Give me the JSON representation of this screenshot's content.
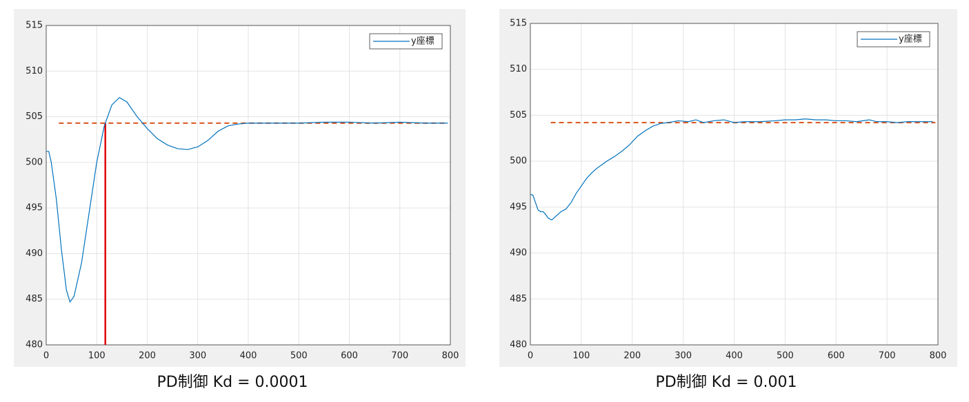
{
  "chart_data": [
    {
      "type": "line",
      "caption": "PD制御 Kd = 0.0001",
      "x": [
        0,
        5,
        10,
        20,
        30,
        40,
        47,
        55,
        70,
        85,
        100,
        115,
        130,
        145,
        160,
        180,
        200,
        220,
        240,
        260,
        280,
        300,
        320,
        340,
        360,
        380,
        400,
        450,
        500,
        550,
        600,
        650,
        700,
        750,
        795
      ],
      "series": [
        {
          "name": "y座標",
          "color": "#0072bd",
          "values": [
            501.2,
            501.2,
            500,
            496,
            490.5,
            486,
            484.7,
            485.3,
            489,
            494.5,
            500,
            504,
            506.3,
            507.1,
            506.6,
            505,
            503.7,
            502.6,
            501.9,
            501.5,
            501.4,
            501.7,
            502.4,
            503.4,
            504,
            504.2,
            504.3,
            504.3,
            504.3,
            504.4,
            504.4,
            504.3,
            504.4,
            504.3,
            504.3
          ]
        }
      ],
      "hline": {
        "y": 504.3,
        "x": [
          25,
          795
        ],
        "color": "#d95319"
      },
      "vline": {
        "x": 117,
        "y": [
          480,
          504.3
        ],
        "color": "#e00000"
      },
      "xlim": [
        0,
        800
      ],
      "xticks": [
        0,
        100,
        200,
        300,
        400,
        500,
        600,
        700,
        800
      ],
      "ylim": [
        480,
        515
      ],
      "yticks": [
        480,
        485,
        490,
        495,
        500,
        505,
        510,
        515
      ],
      "grid": true,
      "legend": "northeast"
    },
    {
      "type": "line",
      "caption": "PD制御 Kd = 0.001",
      "x": [
        0,
        5,
        10,
        15,
        20,
        25,
        30,
        35,
        42,
        50,
        60,
        70,
        80,
        90,
        100,
        110,
        120,
        130,
        140,
        150,
        165,
        180,
        195,
        210,
        225,
        240,
        255,
        270,
        290,
        310,
        325,
        340,
        360,
        380,
        400,
        420,
        450,
        480,
        500,
        520,
        540,
        560,
        580,
        600,
        620,
        640,
        665,
        680,
        700,
        720,
        740,
        760,
        790
      ],
      "series": [
        {
          "name": "y座標",
          "color": "#0072bd",
          "values": [
            496.4,
            496.3,
            495.5,
            494.7,
            494.5,
            494.5,
            494.2,
            493.8,
            493.6,
            494,
            494.5,
            494.8,
            495.5,
            496.5,
            497.3,
            498.1,
            498.7,
            499.2,
            499.6,
            500,
            500.5,
            501.1,
            501.8,
            502.7,
            503.3,
            503.8,
            504.1,
            504.2,
            504.4,
            504.3,
            504.5,
            504.2,
            504.4,
            504.5,
            504.2,
            504.3,
            504.3,
            504.4,
            504.5,
            504.5,
            504.6,
            504.5,
            504.5,
            504.4,
            504.4,
            504.3,
            504.5,
            504.3,
            504.3,
            504.2,
            504.3,
            504.3,
            504.3
          ]
        }
      ],
      "hline": {
        "y": 504.2,
        "x": [
          40,
          795
        ],
        "color": "#d95319"
      },
      "xlim": [
        0,
        800
      ],
      "xticks": [
        0,
        100,
        200,
        300,
        400,
        500,
        600,
        700,
        800
      ],
      "ylim": [
        480,
        515
      ],
      "yticks": [
        480,
        485,
        490,
        495,
        500,
        505,
        510,
        515
      ],
      "grid": true,
      "legend": "northeast"
    }
  ]
}
